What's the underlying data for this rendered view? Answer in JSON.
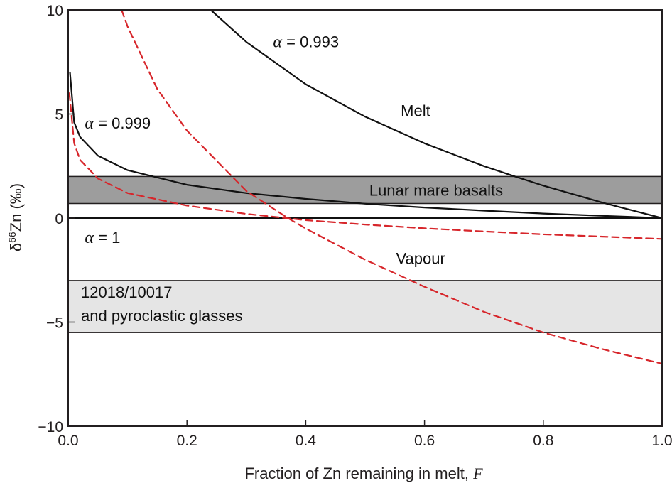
{
  "chart_data": {
    "type": "line",
    "xlabel": "Fraction of Zn remaining in melt, ",
    "xlabel_var": "F",
    "ylabel_prefix": "δ",
    "ylabel_sup": "66",
    "ylabel_suffix": "Zn (‰)",
    "xlim": [
      0.0,
      1.0
    ],
    "ylim": [
      -10,
      10
    ],
    "xticks": [
      0.0,
      0.2,
      0.4,
      0.6,
      0.8,
      1.0
    ],
    "xtick_labels": [
      "0.0",
      "0.2",
      "0.4",
      "0.6",
      "0.8",
      "1.0"
    ],
    "yticks": [
      -10,
      -5,
      0,
      5,
      10
    ],
    "ytick_labels": [
      "−10",
      "−5",
      "0",
      "5",
      "10"
    ],
    "grid": false,
    "colors": {
      "melt": "#111111",
      "vapour": "#d7262b",
      "band_dark": "#9d9d9d",
      "band_light": "#e5e5e5"
    },
    "bands": [
      {
        "label": "Lunar mare basalts",
        "y": [
          0.7,
          2.0
        ],
        "fill": "#9d9d9d",
        "text_color": "#ffffff"
      },
      {
        "label_lines": [
          "12018/10017",
          "and pyroclastic glasses"
        ],
        "y": [
          -5.5,
          -3.0
        ],
        "fill": "#e5e5e5",
        "text_color": "#111111"
      }
    ],
    "series": [
      {
        "type": "melt",
        "alpha": 0.993,
        "color": "#111111",
        "dashed": false,
        "x": [
          0.24,
          0.3,
          0.4,
          0.5,
          0.6,
          0.7,
          0.75,
          0.8,
          0.9,
          1.0
        ],
        "y": [
          10.0,
          8.46,
          6.43,
          4.87,
          3.59,
          2.5,
          2.02,
          1.56,
          0.74,
          0.0
        ]
      },
      {
        "type": "melt",
        "alpha": 0.999,
        "color": "#111111",
        "dashed": false,
        "x": [
          0.003,
          0.01,
          0.02,
          0.05,
          0.1,
          0.2,
          0.3,
          0.4,
          0.5,
          0.6,
          0.7,
          0.8,
          0.9,
          1.0
        ],
        "y": [
          7.0,
          4.6,
          3.9,
          3.0,
          2.3,
          1.6,
          1.2,
          0.92,
          0.69,
          0.51,
          0.36,
          0.22,
          0.11,
          0.0
        ]
      },
      {
        "type": "melt",
        "alpha": 1,
        "color": "#111111",
        "dashed": false,
        "x": [
          0.0,
          1.0
        ],
        "y": [
          0.0,
          0.0
        ]
      },
      {
        "type": "vapour",
        "alpha": 0.993,
        "color": "#d7262b",
        "dashed": true,
        "x": [
          0.09,
          0.1,
          0.15,
          0.2,
          0.3,
          0.37,
          0.4,
          0.5,
          0.6,
          0.7,
          0.8,
          0.9,
          1.0
        ],
        "y": [
          10.0,
          9.2,
          6.2,
          4.2,
          1.3,
          0.0,
          -0.5,
          -2.0,
          -3.3,
          -4.5,
          -5.5,
          -6.3,
          -7.0
        ]
      },
      {
        "type": "vapour",
        "alpha": 0.999,
        "color": "#d7262b",
        "dashed": true,
        "x": [
          0.002,
          0.01,
          0.02,
          0.05,
          0.1,
          0.2,
          0.3,
          0.4,
          0.5,
          0.6,
          0.7,
          0.8,
          0.9,
          1.0
        ],
        "y": [
          6.0,
          3.6,
          2.8,
          1.9,
          1.2,
          0.6,
          0.2,
          -0.1,
          -0.31,
          -0.49,
          -0.64,
          -0.78,
          -0.89,
          -1.0
        ]
      }
    ],
    "annotations": [
      {
        "alpha_prefix": "α",
        "text": " = 0.993",
        "x": 0.345,
        "y": 8.2
      },
      {
        "alpha_prefix": "α",
        "text": " = 0.999",
        "x": 0.028,
        "y": 4.3
      },
      {
        "alpha_prefix": "α",
        "text": " = 1",
        "x": 0.028,
        "y": -1.2
      },
      {
        "text": "Melt",
        "x": 0.56,
        "y": 4.9,
        "color": "#111111"
      },
      {
        "text": "Vapour",
        "x": 0.552,
        "y": -2.2,
        "color": "#d7262b"
      }
    ]
  }
}
